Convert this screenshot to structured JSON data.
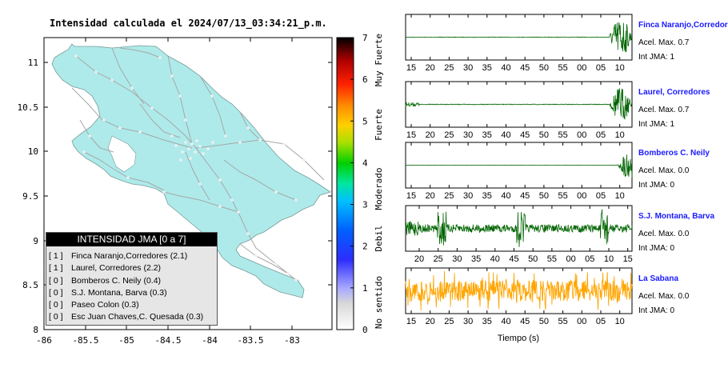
{
  "map": {
    "title": "Intensidad calculada el 2024/07/13_03:34:21_p.m.",
    "x_ticks": [
      "-86",
      "-85.5",
      "-85",
      "-84.5",
      "-84",
      "-83.5",
      "-83"
    ],
    "y_ticks": [
      "11",
      "10.5",
      "10",
      "9.5",
      "9",
      "8.5",
      "8"
    ],
    "colors": {
      "land": "#aeeaea",
      "roads": "#a7a7a7",
      "towns": "#f0f0f0"
    }
  },
  "colorbar": {
    "ticks": [
      "0",
      "1",
      "2",
      "3",
      "4",
      "5",
      "6",
      "7"
    ],
    "class_labels": [
      "No sentido",
      "Debil",
      "Moderado",
      "Fuerte",
      "Muy Fuerte"
    ]
  },
  "legend": {
    "title": "INTENSIDAD JMA [0 a 7]",
    "rows": [
      {
        "intensity": "[ 1 ]",
        "label": "Finca Naranjo,Corredores (2.1)"
      },
      {
        "intensity": "[ 1 ]",
        "label": "Laurel, Corredores (2.2)"
      },
      {
        "intensity": "[ 0 ]",
        "label": "Bomberos C. Neily (0.4)"
      },
      {
        "intensity": "[ 0 ]",
        "label": "S.J. Montana, Barva (0.3)"
      },
      {
        "intensity": "[ 0 ]",
        "label": "Paseo Colon (0.3)"
      },
      {
        "intensity": "[ 0 ]",
        "label": "Esc Juan Chaves,C. Quesada (0.3)"
      }
    ]
  },
  "waveforms": {
    "x_axis_label": "Tiempo (s)",
    "stations": [
      {
        "name": "Finca Naranjo,Corredor",
        "accel": "Acel. Max. 0.7",
        "int": "Int JMA: 1",
        "color": "#006400",
        "ticks": [
          "15",
          "20",
          "25",
          "30",
          "35",
          "40",
          "45",
          "50",
          "55",
          "00",
          "05",
          "10"
        ]
      },
      {
        "name": "Laurel, Corredores",
        "accel": "Acel. Max. 0.7",
        "int": "Int JMA: 1",
        "color": "#006400",
        "ticks": [
          "15",
          "20",
          "25",
          "30",
          "35",
          "40",
          "45",
          "50",
          "55",
          "00",
          "05",
          "10"
        ]
      },
      {
        "name": "Bomberos C. Neily",
        "accel": "Acel. Max. 0.0",
        "int": "Int JMA: 0",
        "color": "#006400",
        "ticks": [
          "15",
          "20",
          "25",
          "30",
          "35",
          "40",
          "45",
          "50",
          "55",
          "00",
          "05",
          "10"
        ]
      },
      {
        "name": "S.J. Montana, Barva",
        "accel": "Acel. Max. 0.0",
        "int": "Int JMA: 0",
        "color": "#006400",
        "ticks": [
          "20",
          "25",
          "30",
          "35",
          "40",
          "45",
          "50",
          "55",
          "00",
          "05",
          "10",
          "15"
        ]
      },
      {
        "name": "La Sabana",
        "accel": "Acel. Max. 0.0",
        "int": "Int JMA: 0",
        "color": "#ffa500",
        "ticks": [
          "15",
          "20",
          "25",
          "30",
          "35",
          "40",
          "45",
          "50",
          "55",
          "00",
          "05",
          "10"
        ]
      }
    ]
  },
  "chart_data": [
    {
      "type": "map",
      "title": "Intensidad calculada el 2024/07/13_03:34:21_p.m.",
      "xlim": [
        -86,
        -82.5
      ],
      "ylim": [
        8,
        11.3
      ],
      "colorbar_range": [
        0,
        7
      ],
      "stations": [
        {
          "name": "Finca Naranjo,Corredores",
          "jma": 1,
          "value": 2.1
        },
        {
          "name": "Laurel, Corredores",
          "jma": 1,
          "value": 2.2
        },
        {
          "name": "Bomberos C. Neily",
          "jma": 0,
          "value": 0.4
        },
        {
          "name": "S.J. Montana, Barva",
          "jma": 0,
          "value": 0.3
        },
        {
          "name": "Paseo Colon",
          "jma": 0,
          "value": 0.3
        },
        {
          "name": "Esc Juan Chaves,C. Quesada",
          "jma": 0,
          "value": 0.3
        }
      ]
    },
    {
      "type": "line",
      "xlabel": "Tiempo (s)",
      "series": [
        {
          "name": "Finca Naranjo,Corredor",
          "accel_max": 0.7,
          "int_jma": 1,
          "onset_fraction": 0.9
        },
        {
          "name": "Laurel, Corredores",
          "accel_max": 0.7,
          "int_jma": 1,
          "onset_fraction": 0.9
        },
        {
          "name": "Bomberos C. Neily",
          "accel_max": 0.0,
          "int_jma": 0,
          "onset_fraction": 0.93
        },
        {
          "name": "S.J. Montana, Barva",
          "accel_max": 0.0,
          "int_jma": 0
        },
        {
          "name": "La Sabana",
          "accel_max": 0.0,
          "int_jma": 0
        }
      ]
    }
  ]
}
